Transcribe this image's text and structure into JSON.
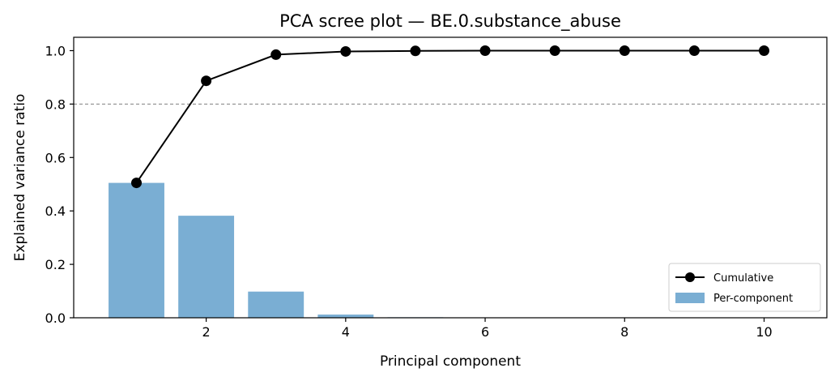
{
  "chart_data": {
    "type": "bar",
    "title": "PCA scree plot — BE.0.substance_abuse",
    "xlabel": "Principal component",
    "ylabel": "Explained variance ratio",
    "xlim": [
      0.1,
      10.9
    ],
    "ylim": [
      0.0,
      1.05
    ],
    "x_ticks": [
      2,
      4,
      6,
      8,
      10
    ],
    "x_tick_labels": [
      "2",
      "4",
      "6",
      "8",
      "10"
    ],
    "y_ticks": [
      0.0,
      0.2,
      0.4,
      0.6,
      0.8,
      1.0
    ],
    "y_tick_labels": [
      "0.0",
      "0.2",
      "0.4",
      "0.6",
      "0.8",
      "1.0"
    ],
    "x": [
      1,
      2,
      3,
      4,
      5,
      6,
      7,
      8,
      9,
      10
    ],
    "series": [
      {
        "name": "Per-component",
        "kind": "bar",
        "color": "#7aaed3",
        "values": [
          0.505,
          0.382,
          0.098,
          0.012,
          0.002,
          0.001,
          0.0,
          0.0,
          0.0,
          0.0
        ]
      },
      {
        "name": "Cumulative",
        "kind": "line",
        "color": "#000000",
        "marker": "circle",
        "values": [
          0.505,
          0.887,
          0.985,
          0.997,
          0.999,
          1.0,
          1.0,
          1.0,
          1.0,
          1.0
        ]
      }
    ],
    "reference_line": {
      "y": 0.8,
      "style": "dashed",
      "color": "#808080"
    },
    "grid": false,
    "legend_position": "lower-right"
  }
}
